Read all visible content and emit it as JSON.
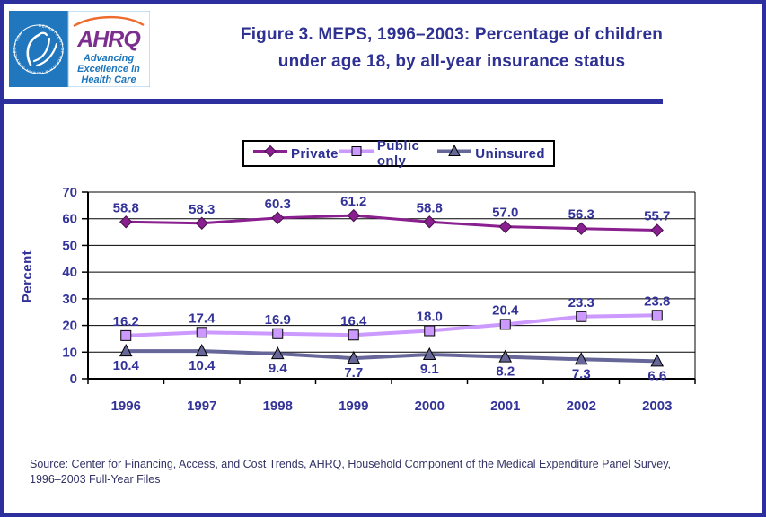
{
  "header": {
    "logo": {
      "seal_text": "DEPARTMENT OF HEALTH & HUMAN SERVICES • USA",
      "ahrq_acronym": "AHRQ",
      "tagline_line1": "Advancing",
      "tagline_line2": "Excellence in",
      "tagline_line3": "Health Care"
    },
    "title_line1": "Figure 3. MEPS, 1996–2003: Percentage of children",
    "title_line2": "under age 18, by all-year insurance status"
  },
  "chart_data": {
    "type": "line",
    "title": "Figure 3. MEPS, 1996–2003: Percentage of children under age 18, by all-year insurance status",
    "categories": [
      "1996",
      "1997",
      "1998",
      "1999",
      "2000",
      "2001",
      "2002",
      "2003"
    ],
    "series": [
      {
        "name": "Private",
        "values": [
          58.8,
          58.3,
          60.3,
          61.2,
          58.8,
          57.0,
          56.3,
          55.7
        ],
        "color": "#8A1F8F",
        "marker": "diamond",
        "label_position": "above"
      },
      {
        "name": "Public only",
        "values": [
          16.2,
          17.4,
          16.9,
          16.4,
          18.0,
          20.4,
          23.3,
          23.8
        ],
        "color": "#CC99FF",
        "marker": "square",
        "label_position": "above"
      },
      {
        "name": "Uninsured",
        "values": [
          10.4,
          10.4,
          9.4,
          7.7,
          9.1,
          8.2,
          7.3,
          6.6
        ],
        "color": "#666699",
        "marker": "triangle",
        "label_position": "below"
      }
    ],
    "xlabel": "",
    "ylabel": "Percent",
    "ylim": [
      0,
      70
    ],
    "ytick_step": 10,
    "ytick_labels": [
      "0",
      "10",
      "20",
      "30",
      "40",
      "50",
      "60",
      "70"
    ],
    "grid": true,
    "legend_position": "top-center",
    "data_label_decimals": 1
  },
  "footer": {
    "source_line1": "Source: Center for Financing, Access, and Cost Trends, AHRQ, Household Component of the Medical Expenditure Panel Survey,",
    "source_line2": "1996–2003 Full-Year Files"
  },
  "colors": {
    "frame": "#2E2F9E",
    "title_text": "#2E3192",
    "axis_text": "#333399",
    "data_label_text": "#333399",
    "source_text": "#333366",
    "grid": "#000000",
    "legend_border": "#000000",
    "logo_panel_blue": "#2077BE",
    "logo_text_blue": "#1B75BC",
    "logo_purple": "#7B2E8E",
    "logo_arc_orange": "#EE6B2D"
  }
}
